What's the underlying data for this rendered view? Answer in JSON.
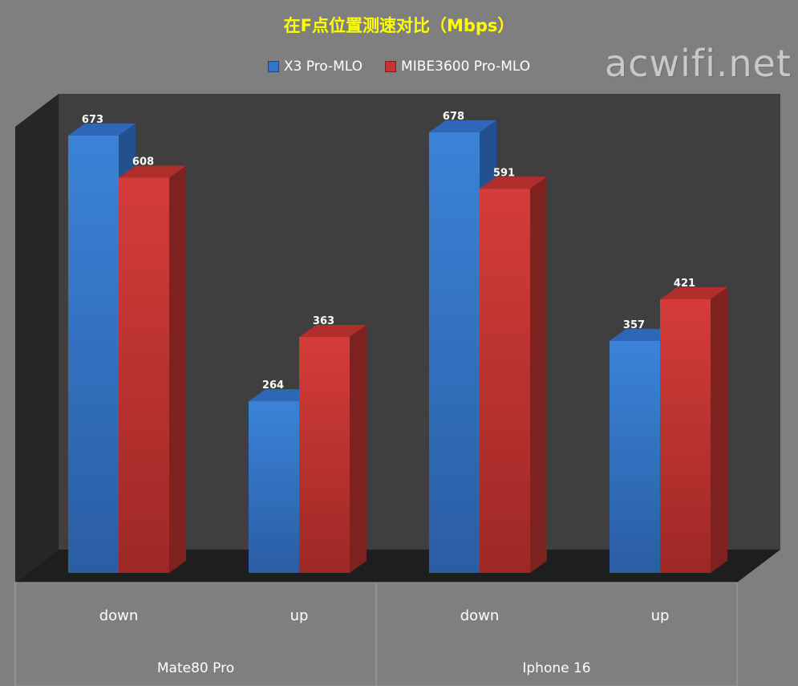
{
  "watermark": "acwifi.net",
  "chart_data": {
    "type": "bar",
    "title": "在F点位置测速对比（Mbps）",
    "categories": [
      "down",
      "up",
      "down",
      "up"
    ],
    "groups": [
      {
        "label": "Mate80 Pro",
        "categories": [
          "down",
          "up"
        ]
      },
      {
        "label": "Iphone 16",
        "categories": [
          "down",
          "up"
        ]
      }
    ],
    "series": [
      {
        "name": "X3 Pro-MLO",
        "color": "#3575c8",
        "values": [
          673,
          264,
          678,
          357
        ]
      },
      {
        "name": "MIBE3600 Pro-MLO",
        "color": "#c83232",
        "values": [
          608,
          363,
          591,
          421
        ]
      }
    ],
    "xlabel": "",
    "ylabel": "",
    "ylim": [
      0,
      700
    ],
    "legend_position": "top",
    "grid": false,
    "style": "3d-clustered-column"
  }
}
